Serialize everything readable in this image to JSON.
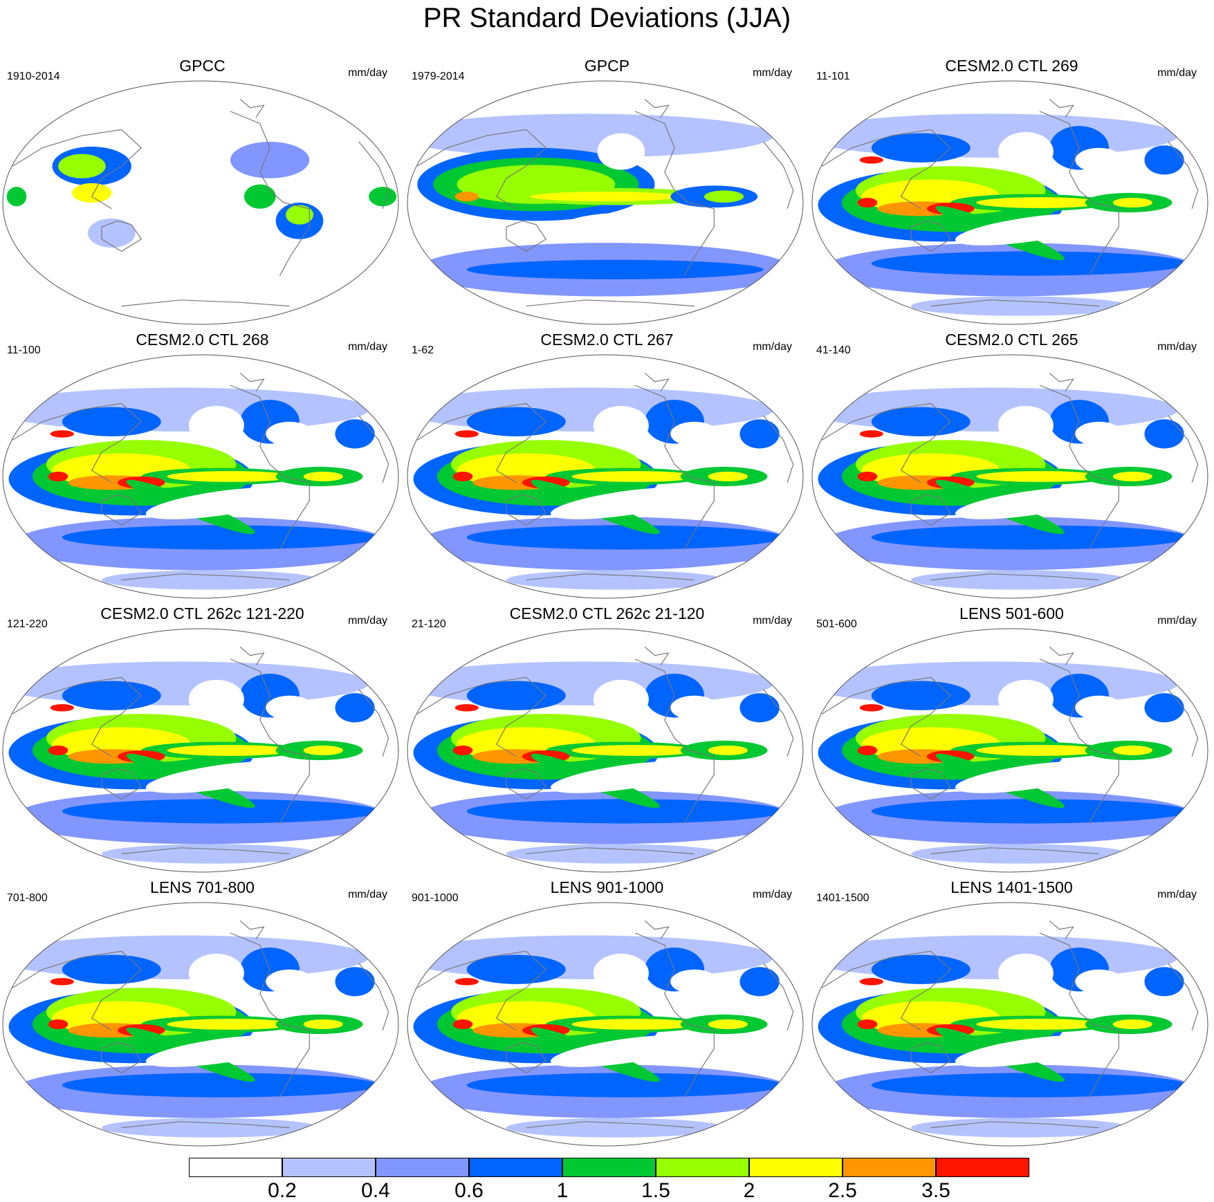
{
  "title": "PR Standard Deviations (JJA)",
  "panels": [
    {
      "title": "GPCC",
      "period": "1910-2014",
      "units": "mm/day",
      "kind": "obs_land"
    },
    {
      "title": "GPCP",
      "period": "1979-2014",
      "units": "mm/day",
      "kind": "obs_global"
    },
    {
      "title": "CESM2.0 CTL 269",
      "period": "11-101",
      "units": "mm/day",
      "kind": "model"
    },
    {
      "title": "CESM2.0 CTL 268",
      "period": "11-100",
      "units": "mm/day",
      "kind": "model"
    },
    {
      "title": "CESM2.0 CTL 267",
      "period": "1-62",
      "units": "mm/day",
      "kind": "model"
    },
    {
      "title": "CESM2.0 CTL 265",
      "period": "41-140",
      "units": "mm/day",
      "kind": "model"
    },
    {
      "title": "CESM2.0 CTL 262c 121-220",
      "period": "121-220",
      "units": "mm/day",
      "kind": "model"
    },
    {
      "title": "CESM2.0 CTL 262c 21-120",
      "period": "21-120",
      "units": "mm/day",
      "kind": "model"
    },
    {
      "title": "LENS 501-600",
      "period": "501-600",
      "units": "mm/day",
      "kind": "model"
    },
    {
      "title": "LENS 701-800",
      "period": "701-800",
      "units": "mm/day",
      "kind": "model"
    },
    {
      "title": "LENS 901-1000",
      "period": "901-1000",
      "units": "mm/day",
      "kind": "model"
    },
    {
      "title": "LENS 1401-1500",
      "period": "1401-1500",
      "units": "mm/day",
      "kind": "model"
    }
  ],
  "colorbar": {
    "colors": [
      "#ffffff",
      "#b4c3ff",
      "#8296ff",
      "#0064ff",
      "#00c832",
      "#96ff00",
      "#ffff00",
      "#ff9600",
      "#ff1400"
    ],
    "labels": [
      "0.2",
      "0.4",
      "0.6",
      "1",
      "1.5",
      "2",
      "2.5",
      "3.5"
    ]
  },
  "colors": {
    "coastline": "#777777",
    "map_border": "#555555"
  }
}
